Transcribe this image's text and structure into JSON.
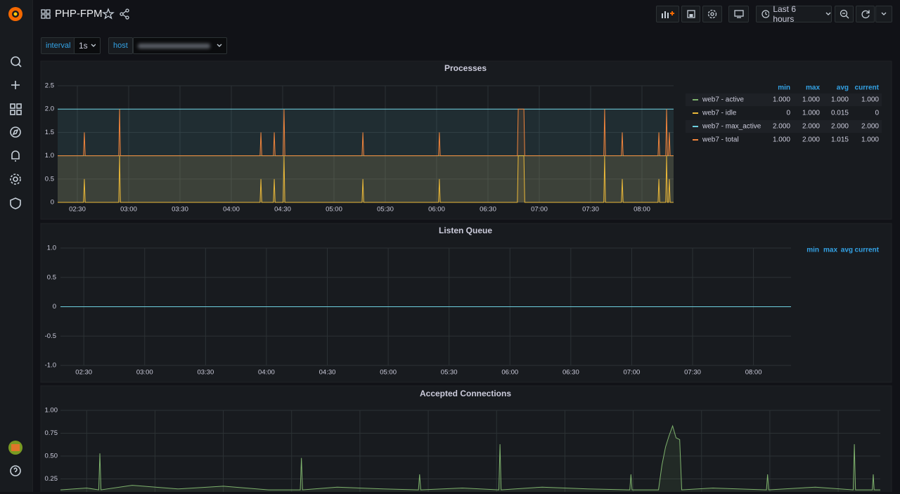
{
  "header": {
    "title": "PHP-FPM",
    "time_range": "Last 6 hours"
  },
  "variables": [
    {
      "label": "interval",
      "value": "1s"
    },
    {
      "label": "host"
    }
  ],
  "chart_data": [
    {
      "type": "line",
      "title": "Processes",
      "fill": true,
      "xlim": [
        138.5,
        498.5
      ],
      "xticks": [
        {
          "value": 150,
          "label": "02:30"
        },
        {
          "value": 180,
          "label": "03:00"
        },
        {
          "value": 210,
          "label": "03:30"
        },
        {
          "value": 240,
          "label": "04:00"
        },
        {
          "value": 270,
          "label": "04:30"
        },
        {
          "value": 300,
          "label": "05:00"
        },
        {
          "value": 330,
          "label": "05:30"
        },
        {
          "value": 360,
          "label": "06:00"
        },
        {
          "value": 390,
          "label": "06:30"
        },
        {
          "value": 420,
          "label": "07:00"
        },
        {
          "value": 450,
          "label": "07:30"
        },
        {
          "value": 480,
          "label": "08:00"
        }
      ],
      "ylim": [
        0,
        2.5
      ],
      "yticks": [
        0,
        0.5,
        {
          "value": 1,
          "label": "1.0"
        },
        1.5,
        {
          "value": 2,
          "label": "2.0"
        },
        2.5
      ],
      "grid": true,
      "legend_columns": [
        "min",
        "max",
        "avg",
        "current"
      ],
      "x": [
        138.5,
        153.6,
        154.1,
        154.6,
        174.2,
        174.7,
        175.2,
        256.8,
        257.3,
        257.8,
        264.6,
        265.1,
        265.6,
        270.3,
        270.8,
        271.3,
        316.4,
        316.9,
        317.4,
        361.1,
        361.6,
        362.1,
        407.2,
        407.7,
        411,
        411.5,
        457.7,
        458.2,
        458.7,
        468,
        468.5,
        469,
        489.4,
        489.9,
        490.4,
        493.9,
        494.4,
        494.9,
        495.5,
        496,
        496.5,
        498.5
      ],
      "series": [
        {
          "name": "web7 - active",
          "color": "#7eb26d",
          "legend_values": [
            "1.000",
            "1.000",
            "1.000",
            "1.000"
          ],
          "values": [
            1,
            1,
            1,
            1,
            1,
            1,
            1,
            1,
            1,
            1,
            1,
            1,
            1,
            1,
            1,
            1,
            1,
            1,
            1,
            1,
            1,
            1,
            1,
            1,
            1,
            1,
            1,
            1,
            1,
            1,
            1,
            1,
            1,
            1,
            1,
            1,
            1,
            1,
            1,
            1,
            1,
            1
          ]
        },
        {
          "name": "web7 - idle",
          "color": "#eab839",
          "legend_values": [
            "0",
            "1.000",
            "0.015",
            "0"
          ],
          "values": [
            0,
            0,
            0.5,
            0,
            0,
            1,
            0,
            0,
            0.5,
            0,
            0,
            0.5,
            0,
            0,
            1,
            0,
            0,
            0.5,
            0,
            0,
            0.5,
            0,
            0,
            1,
            1,
            0,
            0,
            1,
            0,
            0,
            0.5,
            0,
            0,
            0.5,
            0,
            0,
            1,
            0,
            0,
            0.5,
            0,
            0
          ]
        },
        {
          "name": "web7 - max_active",
          "color": "#6ed0e0",
          "legend_values": [
            "2.000",
            "2.000",
            "2.000",
            "2.000"
          ],
          "values": [
            2,
            2,
            2,
            2,
            2,
            2,
            2,
            2,
            2,
            2,
            2,
            2,
            2,
            2,
            2,
            2,
            2,
            2,
            2,
            2,
            2,
            2,
            2,
            2,
            2,
            2,
            2,
            2,
            2,
            2,
            2,
            2,
            2,
            2,
            2,
            2,
            2,
            2,
            2,
            2,
            2,
            2
          ]
        },
        {
          "name": "web7 - total",
          "color": "#ef843c",
          "legend_values": [
            "1.000",
            "2.000",
            "1.015",
            "1.000"
          ],
          "values": [
            1,
            1,
            1.5,
            1,
            1,
            2,
            1,
            1,
            1.5,
            1,
            1,
            1.5,
            1,
            1,
            2,
            1,
            1,
            1.5,
            1,
            1,
            1.5,
            1,
            1,
            2,
            2,
            1,
            1,
            2,
            1,
            1,
            1.5,
            1,
            1,
            1.5,
            1,
            1,
            2,
            1,
            1,
            1.5,
            1,
            1
          ]
        }
      ]
    },
    {
      "type": "line",
      "title": "Listen Queue",
      "xlim": [
        138.5,
        498.5
      ],
      "xticks": [
        {
          "value": 150,
          "label": "02:30"
        },
        {
          "value": 180,
          "label": "03:00"
        },
        {
          "value": 210,
          "label": "03:30"
        },
        {
          "value": 240,
          "label": "04:00"
        },
        {
          "value": 270,
          "label": "04:30"
        },
        {
          "value": 300,
          "label": "05:00"
        },
        {
          "value": 330,
          "label": "05:30"
        },
        {
          "value": 360,
          "label": "06:00"
        },
        {
          "value": 390,
          "label": "06:30"
        },
        {
          "value": 420,
          "label": "07:00"
        },
        {
          "value": 450,
          "label": "07:30"
        },
        {
          "value": 480,
          "label": "08:00"
        }
      ],
      "ylim": [
        -1,
        1
      ],
      "yticks": [
        {
          "value": -1,
          "label": "-1.0"
        },
        -0.5,
        0,
        0.5,
        {
          "value": 1,
          "label": "1.0"
        }
      ],
      "grid": true,
      "legend_columns": [
        "min",
        "max",
        "avg",
        "current"
      ],
      "x": [
        138.5,
        498.5
      ],
      "series": [
        {
          "color": "#6ed0e0",
          "values": [
            0,
            0
          ]
        }
      ]
    },
    {
      "type": "line",
      "title": "Accepted Connections",
      "fill": true,
      "xlim": [
        138.5,
        498.5
      ],
      "xticks": [
        150,
        180,
        210,
        240,
        270,
        300,
        330,
        360,
        390,
        420,
        450,
        480
      ],
      "ylim": [
        0,
        1
      ],
      "yticks": [
        0.25,
        {
          "value": 0.5,
          "label": "0.50"
        },
        0.75,
        {
          "value": 1,
          "label": "1.00"
        }
      ],
      "grid": true,
      "x": [
        138.5,
        150,
        155.3,
        155.8,
        156.3,
        170,
        190,
        210,
        230,
        243.8,
        244.3,
        244.8,
        260,
        280,
        295.7,
        296.2,
        296.7,
        315,
        331,
        331.5,
        332,
        350,
        370,
        388.5,
        389,
        389.5,
        401.1,
        402.6,
        404.2,
        405.7,
        407.3,
        408.8,
        410.4,
        411.3,
        425,
        448.5,
        449,
        449.5,
        470,
        486.6,
        487.1,
        487.6,
        495,
        495.4,
        495.8,
        498.5
      ],
      "series": [
        {
          "color": "#7eb26d",
          "values": [
            0.13,
            0.15,
            0.13,
            0.53,
            0.13,
            0.18,
            0.14,
            0.17,
            0.13,
            0.13,
            0.48,
            0.13,
            0.16,
            0.14,
            0.13,
            0.3,
            0.13,
            0.15,
            0.13,
            0.63,
            0.13,
            0.16,
            0.14,
            0.13,
            0.3,
            0.13,
            0.13,
            0.4,
            0.6,
            0.72,
            0.83,
            0.7,
            0.68,
            0.13,
            0.15,
            0.13,
            0.3,
            0.13,
            0.16,
            0.13,
            0.63,
            0.13,
            0.13,
            0.3,
            0.13,
            0.13
          ]
        }
      ]
    }
  ]
}
